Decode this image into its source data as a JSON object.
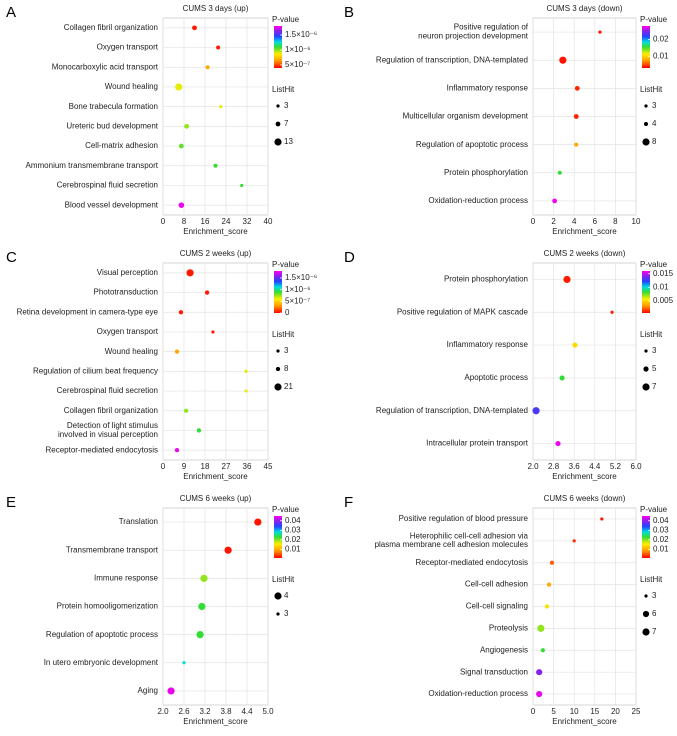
{
  "chart_data": [
    {
      "type": "dot",
      "panel": "A",
      "title": "CUMS 3 days (up)",
      "xlabel": "Enrichment_score",
      "categories": [
        "Collagen fibril organization",
        "Oxygen transport",
        "Monocarboxylic acid transport",
        "Wound healing",
        "Bone trabecula formation",
        "Ureteric bud development",
        "Cell-matrix adhesion",
        "Ammonium transmembrane transport",
        "Cerebrospinal fluid secretion",
        "Blood vessel development"
      ],
      "values": [
        12,
        21,
        17,
        6,
        22,
        9,
        7,
        20,
        30,
        7
      ],
      "p_values": [
        4.4e-07,
        4.4e-07,
        6.8e-07,
        8.9e-07,
        8.9e-07,
        9.9e-07,
        1.05e-06,
        1.1e-06,
        1.1e-06,
        1.77e-06
      ],
      "sizes": [
        7,
        5,
        5,
        13,
        3,
        7,
        7,
        5,
        3,
        9
      ],
      "xlim": [
        0,
        40
      ],
      "xticks": [
        0,
        8,
        16,
        24,
        32,
        40
      ],
      "colorbar": {
        "title": "P-value",
        "lim": [
          4e-07,
          1.8e-06
        ],
        "ticks": [
          {
            "value": 1.5e-06,
            "label": "1.5×10⁻⁶"
          },
          {
            "value": 1e-06,
            "label": "1×10⁻⁶"
          },
          {
            "value": 5e-07,
            "label": "5×10⁻⁷"
          }
        ]
      },
      "size_legend": {
        "title": "ListHit",
        "values": [
          3,
          7,
          13
        ]
      }
    },
    {
      "type": "dot",
      "panel": "B",
      "title": "CUMS 3 days (down)",
      "xlabel": "Enrichment_score",
      "categories": [
        "Positive regulation of\nneuron projection development",
        "Regulation of transcription, DNA-templated",
        "Inflammatory response",
        "Multicellular organism development",
        "Regulation of apoptotic process",
        "Protein phosphorylation",
        "Oxidation-reduction process"
      ],
      "values": [
        6.5,
        2.9,
        4.3,
        4.2,
        4.2,
        2.6,
        2.1
      ],
      "p_values": [
        0.0035,
        0.0035,
        0.004,
        0.004,
        0.008,
        0.0155,
        0.0275
      ],
      "sizes": [
        3,
        8,
        5,
        5,
        4,
        4,
        5
      ],
      "xlim": [
        0,
        10
      ],
      "xticks": [
        0,
        2,
        4,
        6,
        8,
        10
      ],
      "colorbar": {
        "title": "P-value",
        "lim": [
          0.003,
          0.028
        ],
        "ticks": [
          0.02,
          0.01
        ]
      },
      "size_legend": {
        "title": "ListHit",
        "values": [
          3,
          4,
          8
        ]
      }
    },
    {
      "type": "dot",
      "panel": "C",
      "title": "CUMS 2 weeks (up)",
      "xlabel": "Enrichment_score",
      "categories": [
        "Visual perception",
        "Phototransduction",
        "Retina development in camera-type eye",
        "Oxygen transport",
        "Wound healing",
        "Regulation of cilium beat frequency",
        "Cerebrospinal fluid secretion",
        "Collagen fibril organization",
        "Detection of light stimulus\ninvolved in visual perception",
        "Receptor-mediated endocytosis"
      ],
      "values": [
        11.6,
        18.9,
        7.7,
        21.4,
        6,
        35.6,
        35.6,
        9.9,
        15.4,
        6
      ],
      "p_values": [
        5e-08,
        5e-08,
        5e-08,
        5e-08,
        3.6e-07,
        6.3e-07,
        6.3e-07,
        7.6e-07,
        9e-07,
        1.76e-06
      ],
      "sizes": [
        21,
        8,
        8,
        3,
        8,
        3,
        3,
        8,
        8,
        8
      ],
      "xlim": [
        0,
        45
      ],
      "xticks": [
        0,
        9,
        18,
        27,
        36,
        45
      ],
      "colorbar": {
        "title": "P-value",
        "lim": [
          0,
          1.8e-06
        ],
        "ticks": [
          {
            "value": 1.5e-06,
            "label": "1.5×10⁻⁶"
          },
          {
            "value": 1e-06,
            "label": "1×10⁻⁶"
          },
          {
            "value": 5e-07,
            "label": "5×10⁻⁷"
          },
          0
        ]
      },
      "size_legend": {
        "title": "ListHit",
        "values": [
          3,
          8,
          21
        ]
      }
    },
    {
      "type": "dot",
      "panel": "D",
      "title": "CUMS 2 weeks (down)",
      "xlabel": "Enrichment_score",
      "categories": [
        "Protein phosphorylation",
        "Positive regulation of MAPK cascade",
        "Inflammatory response",
        "Apoptotic process",
        "Regulation of transcription, DNA-templated",
        "Intracellular protein transport"
      ],
      "values": [
        3.32,
        5.07,
        3.63,
        3.13,
        2.12,
        2.97
      ],
      "p_values": [
        0.001,
        0.001,
        0.005,
        0.0083,
        0.0129,
        0.0157
      ],
      "sizes": [
        7,
        3,
        5,
        5,
        7,
        5
      ],
      "xlim": [
        2,
        6
      ],
      "xticks": [
        {
          "value": 2,
          "label": "2.0"
        },
        2.8,
        3.6,
        4.4,
        5.2,
        {
          "value": 6,
          "label": "6.0"
        }
      ],
      "colorbar": {
        "title": "P-value",
        "lim": [
          0.0005,
          0.016
        ],
        "ticks": [
          0.015,
          0.01,
          0.005
        ]
      },
      "size_legend": {
        "title": "ListHit",
        "values": [
          3,
          5,
          7
        ]
      }
    },
    {
      "type": "dot",
      "panel": "E",
      "title": "CUMS 6 weeks (up)",
      "xlabel": "Enrichment_score",
      "categories": [
        "Translation",
        "Transmembrane transport",
        "Immune response",
        "Protein homooligomerization",
        "Regulation of apoptotic process",
        "In utero embryonic development",
        "Aging"
      ],
      "values": [
        4.71,
        3.86,
        3.17,
        3.11,
        3.06,
        2.6,
        2.23
      ],
      "p_values": [
        0.002,
        0.002,
        0.0195,
        0.023,
        0.023,
        0.028,
        0.044
      ],
      "sizes": [
        4,
        4,
        4,
        4,
        4,
        3,
        4
      ],
      "xlim": [
        2,
        5
      ],
      "xticks": [
        {
          "value": 2,
          "label": "2.0"
        },
        2.6,
        3.2,
        3.8,
        4.4,
        {
          "value": 5,
          "label": "5.0"
        }
      ],
      "colorbar": {
        "title": "P-value",
        "lim": [
          0.001,
          0.045
        ],
        "ticks": [
          0.04,
          0.03,
          0.02,
          0.01
        ]
      },
      "size_legend": {
        "title": "ListHit",
        "values": [
          4,
          3
        ]
      }
    },
    {
      "type": "dot",
      "panel": "F",
      "title": "CUMS 6 weeks (down)",
      "xlabel": "Enrichment_score",
      "categories": [
        "Positive regulation of blood pressure",
        "Heterophilic cell-cell adhesion via\nplasma membrane cell adhesion molecules",
        "Receptor-mediated endocytosis",
        "Cell-cell adhesion",
        "Cell-cell signaling",
        "Proteolysis",
        "Angiogenesis",
        "Signal transduction",
        "Oxidation-reduction process"
      ],
      "values": [
        16.7,
        10,
        4.6,
        3.9,
        3.4,
        1.9,
        2.4,
        1.5,
        1.5
      ],
      "p_values": [
        0.002,
        0.003,
        0.0054,
        0.0098,
        0.0142,
        0.0195,
        0.023,
        0.0397,
        0.044
      ],
      "sizes": [
        3,
        3,
        4,
        4,
        4,
        7,
        4,
        6,
        6
      ],
      "xlim": [
        0,
        25
      ],
      "xticks": [
        0,
        5,
        10,
        15,
        20,
        25
      ],
      "colorbar": {
        "title": "P-value",
        "lim": [
          0.001,
          0.045
        ],
        "ticks": [
          0.04,
          0.03,
          0.02,
          0.01
        ]
      },
      "size_legend": {
        "title": "ListHit",
        "values": [
          3,
          6,
          7
        ]
      }
    }
  ]
}
